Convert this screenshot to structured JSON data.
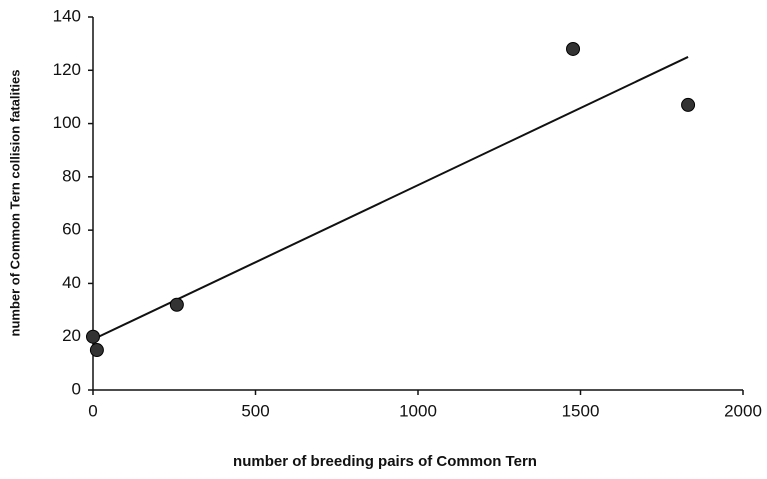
{
  "chart_data": {
    "type": "scatter",
    "x_label": "number of breeding pairs of Common Tern",
    "y_label": "number of Common Tern collision fatalities",
    "x": [
      0,
      12,
      258,
      1477,
      1831
    ],
    "values": [
      20,
      15,
      32,
      128,
      107
    ],
    "color": "#333333",
    "trendline": {
      "x": [
        0,
        1831
      ],
      "values": [
        19,
        125
      ],
      "color": "#111111"
    },
    "xlim": [
      0,
      2000
    ],
    "xticks": [
      0,
      500,
      1000,
      1500,
      2000
    ],
    "ylim": [
      0,
      140
    ],
    "yticks": [
      0,
      20,
      40,
      60,
      80,
      100,
      120,
      140
    ],
    "grid": false
  }
}
